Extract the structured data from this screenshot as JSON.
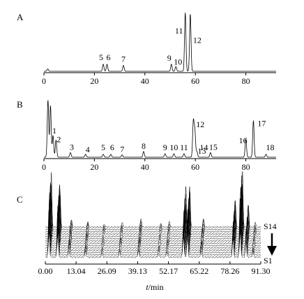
{
  "chart_data": [
    {
      "type": "line",
      "panel": "A",
      "xlim": [
        0,
        92
      ],
      "x_ticks": [
        0,
        20,
        40,
        60,
        80
      ],
      "tick_labels": [
        "0",
        "20",
        "40",
        "60",
        "80"
      ],
      "peaks": [
        {
          "label": "5",
          "t": 23.5,
          "h": 0.12
        },
        {
          "label": "6",
          "t": 25.0,
          "h": 0.12
        },
        {
          "label": "7",
          "t": 31.5,
          "h": 0.1
        },
        {
          "label": "9",
          "t": 50.5,
          "h": 0.12
        },
        {
          "label": "10",
          "t": 52.3,
          "h": 0.08
        },
        {
          "label": "11",
          "t": 56.0,
          "h": 1.0
        },
        {
          "label": "12",
          "t": 58.0,
          "h": 0.98
        }
      ],
      "minor_peaks": [
        {
          "t": 1.5,
          "h": 0.04
        }
      ]
    },
    {
      "type": "line",
      "panel": "B",
      "xlim": [
        0,
        92
      ],
      "x_ticks": [
        0,
        20,
        40,
        60,
        80
      ],
      "tick_labels": [
        "0",
        "20",
        "40",
        "60",
        "80"
      ],
      "peaks": [
        {
          "label": "1",
          "t": 3.6,
          "h": 0.38
        },
        {
          "label": "2",
          "t": 4.8,
          "h": 0.3
        },
        {
          "label": "3",
          "t": 10.5,
          "h": 0.08
        },
        {
          "label": "4",
          "t": 16.5,
          "h": 0.05
        },
        {
          "label": "5",
          "t": 23.5,
          "h": 0.05
        },
        {
          "label": "6",
          "t": 26.5,
          "h": 0.05
        },
        {
          "label": "7",
          "t": 31.0,
          "h": 0.04
        },
        {
          "label": "8",
          "t": 39.5,
          "h": 0.1
        },
        {
          "label": "9",
          "t": 48.0,
          "h": 0.06
        },
        {
          "label": "10",
          "t": 51.5,
          "h": 0.06
        },
        {
          "label": "11",
          "t": 55.5,
          "h": 0.06
        },
        {
          "label": "12",
          "t": 59.2,
          "h": 0.62
        },
        {
          "label": "13",
          "t": 59.8,
          "h": 0.45
        },
        {
          "label": "14",
          "t": 60.6,
          "h": 0.1
        },
        {
          "label": "15",
          "t": 66.0,
          "h": 0.08
        },
        {
          "label": "16",
          "t": 80.0,
          "h": 0.32
        },
        {
          "label": "17",
          "t": 83.0,
          "h": 0.64
        },
        {
          "label": "18",
          "t": 88.0,
          "h": 0.05
        }
      ],
      "minor_peaks": [
        {
          "t": 1.6,
          "h": 1.0
        },
        {
          "t": 2.6,
          "h": 0.9
        }
      ]
    },
    {
      "type": "line",
      "panel": "C",
      "xlim": [
        0,
        91.3
      ],
      "x_ticks": [
        0.0,
        13.04,
        26.09,
        39.13,
        52.17,
        65.22,
        78.26,
        91.3
      ],
      "tick_labels": [
        "0.00",
        "13.04",
        "26.09",
        "39.13",
        "52.17",
        "65.22",
        "78.26",
        "91.30"
      ],
      "xlabel_italic": "t",
      "xlabel_unit": "/min",
      "series_top": "S14",
      "series_bottom": "S1",
      "trace_count": 14,
      "peaks": [
        {
          "t": 1.5,
          "h": 0.9
        },
        {
          "t": 5.2,
          "h": 0.8
        },
        {
          "t": 10.0,
          "h": 0.15
        },
        {
          "t": 17.0,
          "h": 0.12
        },
        {
          "t": 24.0,
          "h": 0.08
        },
        {
          "t": 31.5,
          "h": 0.1
        },
        {
          "t": 39.5,
          "h": 0.14
        },
        {
          "t": 48.0,
          "h": 0.08
        },
        {
          "t": 51.5,
          "h": 0.1
        },
        {
          "t": 58.5,
          "h": 0.65
        },
        {
          "t": 60.2,
          "h": 0.7
        },
        {
          "t": 66.0,
          "h": 0.15
        },
        {
          "t": 79.5,
          "h": 0.5
        },
        {
          "t": 82.5,
          "h": 1.0
        },
        {
          "t": 85.0,
          "h": 0.4
        },
        {
          "t": 88.0,
          "h": 0.1
        }
      ]
    }
  ],
  "panels": {
    "a_letter": "A",
    "b_letter": "B",
    "c_letter": "C"
  }
}
